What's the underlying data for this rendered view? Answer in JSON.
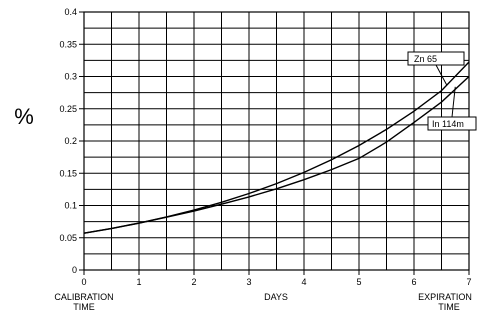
{
  "chart_data": {
    "type": "line",
    "xlabel": "DAYS",
    "ylabel": "%",
    "x_tick_labels": [
      "0",
      "1",
      "2",
      "3",
      "4",
      "5",
      "6",
      "7"
    ],
    "y_tick_labels": [
      "0",
      "0.05",
      "0.1",
      "0.15",
      "0.2",
      "0.25",
      "0.3",
      "0.35",
      "0.4"
    ],
    "xlim": [
      0,
      7
    ],
    "ylim": [
      0,
      0.4
    ],
    "x_minor_step": 0.5,
    "y_minor_step": 0.025,
    "grid": true,
    "x_annotations": {
      "left": [
        "CALIBRATION",
        "TIME"
      ],
      "right": [
        "EXPIRATION",
        "TIME"
      ]
    },
    "series": [
      {
        "name": "Zn 65",
        "x": [
          0,
          0.5,
          1,
          1.5,
          2,
          2.5,
          3,
          3.5,
          4,
          4.5,
          5,
          5.5,
          6,
          6.5,
          7
        ],
        "values": [
          0.057,
          0.0645,
          0.0728,
          0.0822,
          0.0929,
          0.105,
          0.1186,
          0.1339,
          0.1513,
          0.1709,
          0.193,
          0.218,
          0.2462,
          0.2781,
          0.3225
        ]
      },
      {
        "name": "In 114m",
        "x": [
          0,
          0.5,
          1,
          1.5,
          2,
          2.5,
          3,
          3.5,
          4,
          4.5,
          5,
          5.5,
          6,
          6.5,
          7
        ],
        "values": [
          0.057,
          0.0643,
          0.0726,
          0.0819,
          0.0913,
          0.102,
          0.1133,
          0.1259,
          0.14,
          0.1556,
          0.173,
          0.1983,
          0.2288,
          0.2604,
          0.3
        ]
      }
    ]
  }
}
